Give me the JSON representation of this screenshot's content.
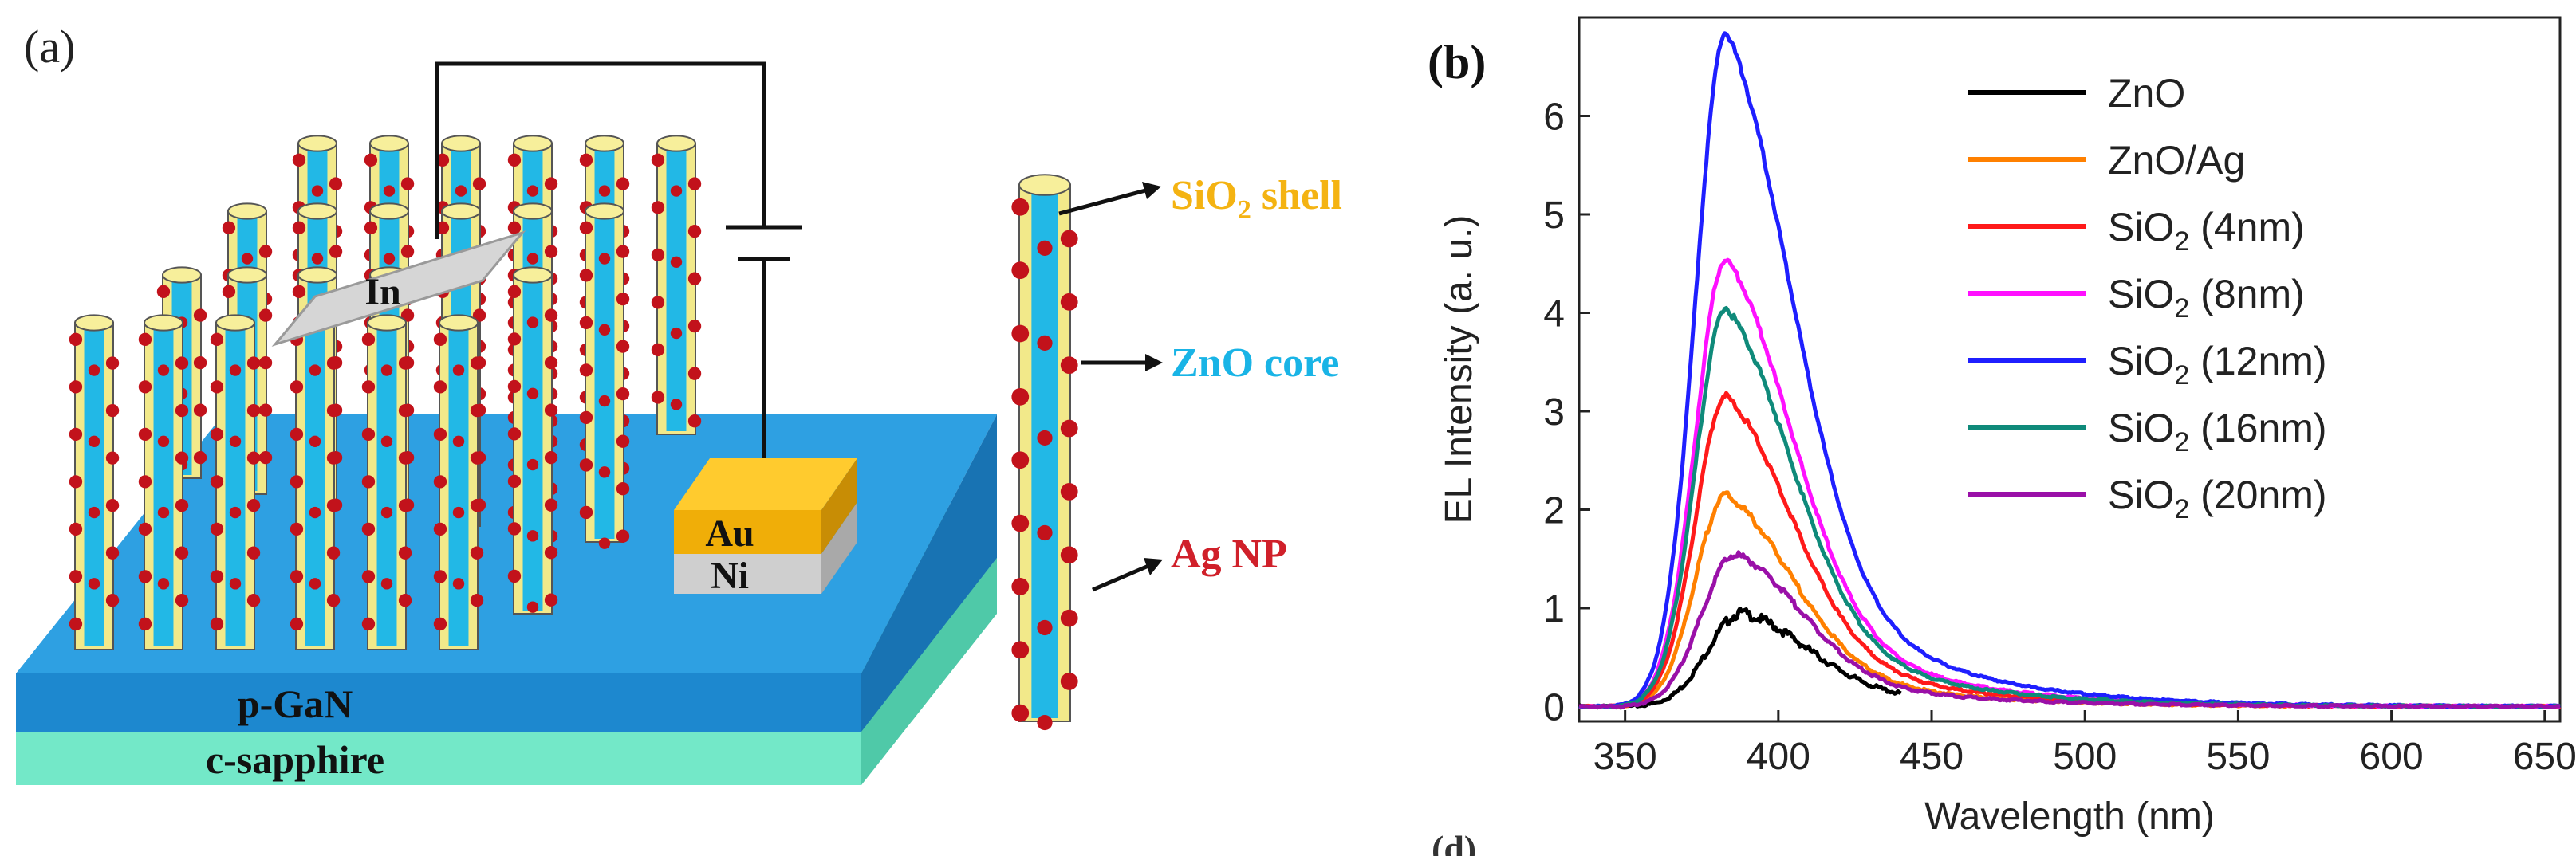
{
  "panel_a": {
    "label": "(a)",
    "contacts": {
      "in": "In",
      "au": "Au",
      "ni": "Ni"
    },
    "layers": {
      "top": "p-GaN",
      "bottom": "c-sapphire"
    },
    "callouts": {
      "shell_prefix": "SiO",
      "shell_sub": "2",
      "shell_suffix": " shell",
      "core": "ZnO core",
      "np": "Ag NP"
    },
    "colors": {
      "shell": "#f2e98a",
      "core": "#22b8e6",
      "np": "#c2121b",
      "au": "#f4b312",
      "ni": "#c8c8c8",
      "gan_top": "#2c9fe0",
      "sapphire": "#6fe6c4"
    }
  },
  "panel_b": {
    "label": "(b)",
    "corner_text": "(d)"
  },
  "chart_data": {
    "type": "line",
    "title": "",
    "xlabel": "Wavelength (nm)",
    "ylabel": "EL Intensity (a. u.)",
    "xlim": [
      335,
      655
    ],
    "ylim": [
      -0.15,
      7.0
    ],
    "xticks": [
      350,
      400,
      450,
      500,
      550,
      600,
      650
    ],
    "yticks": [
      0,
      1,
      2,
      3,
      4,
      5,
      6
    ],
    "legend_position": "top-right",
    "series": [
      {
        "name": "ZnO",
        "prefix": "ZnO",
        "sub": "",
        "suffix": "",
        "color": "#000000",
        "peak": 0.95,
        "peak_x": 388,
        "sigma_l": 11,
        "tail": 0.3,
        "tail_decay": 45,
        "x_end": 440,
        "noise": 0.04
      },
      {
        "name": "ZnO/Ag",
        "prefix": "ZnO/Ag",
        "sub": "",
        "suffix": "",
        "color": "#ff8000",
        "peak": 2.15,
        "peak_x": 383,
        "sigma_l": 10,
        "tail": 0.35,
        "tail_decay": 40,
        "x_end": 655,
        "noise": 0.03
      },
      {
        "name": "SiO2 (4nm)",
        "prefix": "SiO",
        "sub": "2",
        "suffix": " (4nm)",
        "color": "#ff1a1a",
        "peak": 3.15,
        "peak_x": 383,
        "sigma_l": 10,
        "tail": 0.35,
        "tail_decay": 40,
        "x_end": 655,
        "noise": 0.03
      },
      {
        "name": "SiO2 (8nm)",
        "prefix": "SiO",
        "sub": "2",
        "suffix": " (8nm)",
        "color": "#ff10ff",
        "peak": 4.55,
        "peak_x": 383,
        "sigma_l": 10,
        "tail": 0.35,
        "tail_decay": 40,
        "x_end": 655,
        "noise": 0.03
      },
      {
        "name": "SiO2 (12nm)",
        "prefix": "SiO",
        "sub": "2",
        "suffix": " (12nm)",
        "color": "#1f1fff",
        "peak": 6.85,
        "peak_x": 383,
        "sigma_l": 10,
        "tail": 0.35,
        "tail_decay": 40,
        "x_end": 655,
        "noise": 0.03
      },
      {
        "name": "SiO2 (16nm)",
        "prefix": "SiO",
        "sub": "2",
        "suffix": " (16nm)",
        "color": "#0f8a7a",
        "peak": 4.05,
        "peak_x": 383,
        "sigma_l": 10,
        "tail": 0.35,
        "tail_decay": 40,
        "x_end": 655,
        "noise": 0.03
      },
      {
        "name": "SiO2 (20nm)",
        "prefix": "SiO",
        "sub": "2",
        "suffix": " (20nm)",
        "color": "#9a10a8",
        "peak": 1.55,
        "peak_x": 386,
        "sigma_l": 11,
        "tail": 0.32,
        "tail_decay": 45,
        "x_end": 655,
        "noise": 0.03
      }
    ]
  }
}
